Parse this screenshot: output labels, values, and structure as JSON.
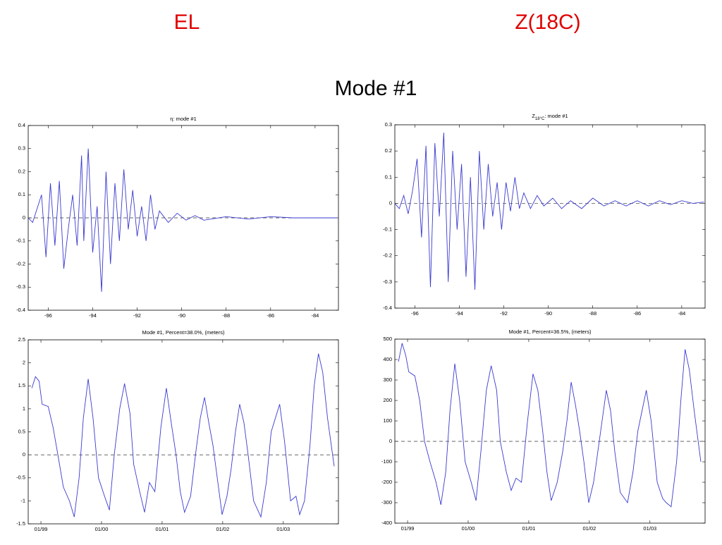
{
  "headers": {
    "left": "EL",
    "right": "Z(18C)",
    "title": "Mode #1"
  },
  "chart_data": [
    {
      "type": "line",
      "title": "η: mode #1",
      "color": "#3a3ad0",
      "zero_line": true,
      "xlim": [
        -96.9,
        -82.95
      ],
      "xticks": [
        -96,
        -94,
        -92,
        -90,
        -88,
        -86,
        -84
      ],
      "ylim": [
        -0.4,
        0.4
      ],
      "yticks": [
        -0.4,
        -0.3,
        -0.2,
        -0.1,
        0,
        0.1,
        0.2,
        0.3,
        0.4
      ],
      "x": [
        -96.9,
        -96.7,
        -96.5,
        -96.3,
        -96.1,
        -95.9,
        -95.7,
        -95.5,
        -95.3,
        -95.1,
        -94.9,
        -94.7,
        -94.5,
        -94.4,
        -94.2,
        -94.0,
        -93.8,
        -93.6,
        -93.4,
        -93.2,
        -93.0,
        -92.8,
        -92.6,
        -92.4,
        -92.2,
        -92.0,
        -91.8,
        -91.6,
        -91.4,
        -91.2,
        -91.0,
        -90.6,
        -90.2,
        -89.8,
        -89.4,
        -89.0,
        -88.0,
        -87.0,
        -86.0,
        -85.0,
        -84.0,
        -83.0
      ],
      "values": [
        0,
        -0.02,
        0.04,
        0.1,
        -0.17,
        0.15,
        -0.12,
        0.16,
        -0.22,
        -0.05,
        0.1,
        -0.12,
        0.27,
        -0.1,
        0.3,
        -0.15,
        0.05,
        -0.32,
        0.2,
        -0.2,
        0.15,
        -0.1,
        0.21,
        -0.05,
        0.12,
        -0.08,
        0.05,
        -0.1,
        0.1,
        -0.05,
        0.03,
        -0.02,
        0.02,
        -0.01,
        0.01,
        -0.01,
        0.005,
        -0.005,
        0.005,
        0,
        0,
        0
      ]
    },
    {
      "type": "line",
      "title": "Z",
      "title_sub": "18°C",
      "title_rest": ": mode #1",
      "color": "#3a3ad0",
      "zero_line": true,
      "xlim": [
        -96.9,
        -82.95
      ],
      "xticks": [
        -96,
        -94,
        -92,
        -90,
        -88,
        -86,
        -84
      ],
      "ylim": [
        -0.4,
        0.3
      ],
      "yticks": [
        -0.4,
        -0.3,
        -0.2,
        -0.1,
        0,
        0.1,
        0.2,
        0.3
      ],
      "x": [
        -96.9,
        -96.7,
        -96.5,
        -96.3,
        -96.1,
        -95.9,
        -95.7,
        -95.5,
        -95.3,
        -95.1,
        -94.9,
        -94.7,
        -94.5,
        -94.3,
        -94.1,
        -93.9,
        -93.7,
        -93.5,
        -93.3,
        -93.1,
        -92.9,
        -92.7,
        -92.5,
        -92.3,
        -92.1,
        -91.9,
        -91.7,
        -91.5,
        -91.3,
        -91.1,
        -90.8,
        -90.5,
        -90.2,
        -89.8,
        -89.4,
        -89.0,
        -88.5,
        -88.0,
        -87.5,
        -87.0,
        -86.5,
        -86.0,
        -85.5,
        -85.0,
        -84.5,
        -84.0,
        -83.5,
        -83.0
      ],
      "values": [
        0,
        -0.02,
        0.03,
        -0.04,
        0.05,
        0.17,
        -0.13,
        0.22,
        -0.32,
        0.23,
        -0.05,
        0.27,
        -0.3,
        0.2,
        -0.1,
        0.15,
        -0.28,
        0.1,
        -0.33,
        0.2,
        -0.1,
        0.15,
        -0.05,
        0.08,
        -0.1,
        0.08,
        -0.03,
        0.1,
        -0.02,
        0.04,
        -0.02,
        0.03,
        -0.01,
        0.02,
        -0.02,
        0.01,
        -0.02,
        0.02,
        -0.01,
        0.01,
        -0.01,
        0.01,
        -0.01,
        0.01,
        -0.005,
        0.01,
        0,
        0.005
      ]
    },
    {
      "type": "line",
      "title": "Mode #1, Percent=38.0%, (meters)",
      "color": "#3a3ad0",
      "zero_line": true,
      "xlim": [
        1998.79,
        2003.91
      ],
      "xticks": [
        {
          "value": 1999,
          "label": "01/99"
        },
        {
          "value": 2000,
          "label": "01/00"
        },
        {
          "value": 2001,
          "label": "01/01"
        },
        {
          "value": 2002,
          "label": "01/02"
        },
        {
          "value": 2003,
          "label": "01/03"
        }
      ],
      "ylim": [
        -1.5,
        2.5
      ],
      "yticks": [
        -1.5,
        -1,
        -0.5,
        0,
        0.5,
        1,
        1.5,
        2,
        2.5
      ],
      "x": [
        1998.85,
        1998.91,
        1998.97,
        1999.02,
        1999.12,
        1999.2,
        1999.28,
        1999.37,
        1999.47,
        1999.55,
        1999.63,
        1999.7,
        1999.78,
        1999.86,
        1999.95,
        2000.05,
        2000.13,
        2000.21,
        2000.3,
        2000.38,
        2000.47,
        2000.53,
        2000.63,
        2000.71,
        2000.79,
        2000.88,
        2000.98,
        2001.07,
        2001.15,
        2001.23,
        2001.3,
        2001.37,
        2001.47,
        2001.56,
        2001.63,
        2001.7,
        2001.77,
        2001.84,
        2001.91,
        2001.99,
        2002.07,
        2002.14,
        2002.21,
        2002.28,
        2002.35,
        2002.42,
        2002.51,
        2002.63,
        2002.72,
        2002.8,
        2002.94,
        2003.02,
        2003.12,
        2003.21,
        2003.27,
        2003.35,
        2003.44,
        2003.51,
        2003.58,
        2003.65,
        2003.73,
        2003.84
      ],
      "values": [
        1.45,
        1.7,
        1.6,
        1.1,
        1.05,
        0.6,
        0.0,
        -0.7,
        -1.0,
        -1.35,
        -0.5,
        0.8,
        1.65,
        0.8,
        -0.5,
        -0.9,
        -1.2,
        0.0,
        1.0,
        1.55,
        0.9,
        -0.2,
        -0.8,
        -1.25,
        -0.6,
        -0.8,
        0.6,
        1.45,
        0.7,
        0.0,
        -0.8,
        -1.25,
        -0.9,
        0.1,
        0.8,
        1.25,
        0.7,
        0.2,
        -0.5,
        -1.3,
        -0.9,
        -0.3,
        0.5,
        1.1,
        0.7,
        0.0,
        -1.0,
        -1.35,
        -0.6,
        0.5,
        1.1,
        0.3,
        -1.0,
        -0.9,
        -1.3,
        -1.0,
        0.2,
        1.5,
        2.2,
        1.8,
        0.8,
        -0.25
      ]
    },
    {
      "type": "line",
      "title": "Mode #1, Percent=36.5%, (meters)",
      "color": "#3a3ad0",
      "zero_line": true,
      "xlim": [
        1998.79,
        2003.91
      ],
      "xticks": [
        {
          "value": 1999,
          "label": "01/99"
        },
        {
          "value": 2000,
          "label": "01/00"
        },
        {
          "value": 2001,
          "label": "01/01"
        },
        {
          "value": 2002,
          "label": "01/02"
        },
        {
          "value": 2003,
          "label": "01/03"
        }
      ],
      "ylim": [
        -400,
        500
      ],
      "yticks": [
        -400,
        -300,
        -200,
        -100,
        0,
        100,
        200,
        300,
        400,
        500
      ],
      "x": [
        1998.85,
        1998.91,
        1998.97,
        1999.02,
        1999.12,
        1999.2,
        1999.28,
        1999.37,
        1999.47,
        1999.55,
        1999.63,
        1999.7,
        1999.78,
        1999.86,
        1999.95,
        2000.05,
        2000.13,
        2000.21,
        2000.3,
        2000.38,
        2000.47,
        2000.53,
        2000.63,
        2000.71,
        2000.79,
        2000.88,
        2000.98,
        2001.07,
        2001.15,
        2001.23,
        2001.3,
        2001.37,
        2001.47,
        2001.56,
        2001.63,
        2001.7,
        2001.77,
        2001.84,
        2001.91,
        2001.99,
        2002.07,
        2002.14,
        2002.21,
        2002.28,
        2002.35,
        2002.42,
        2002.51,
        2002.63,
        2002.72,
        2002.8,
        2002.94,
        2003.02,
        2003.12,
        2003.21,
        2003.27,
        2003.35,
        2003.44,
        2003.51,
        2003.58,
        2003.65,
        2003.73,
        2003.84
      ],
      "values": [
        390,
        480,
        420,
        340,
        320,
        200,
        0,
        -100,
        -200,
        -310,
        -150,
        150,
        380,
        200,
        -100,
        -200,
        -290,
        -50,
        250,
        370,
        250,
        0,
        -150,
        -240,
        -180,
        -200,
        100,
        330,
        250,
        50,
        -150,
        -290,
        -200,
        -50,
        100,
        290,
        180,
        50,
        -100,
        -300,
        -200,
        -50,
        100,
        250,
        150,
        -50,
        -250,
        -300,
        -150,
        50,
        250,
        100,
        -200,
        -280,
        -300,
        -320,
        -100,
        200,
        450,
        350,
        150,
        -100
      ]
    }
  ]
}
